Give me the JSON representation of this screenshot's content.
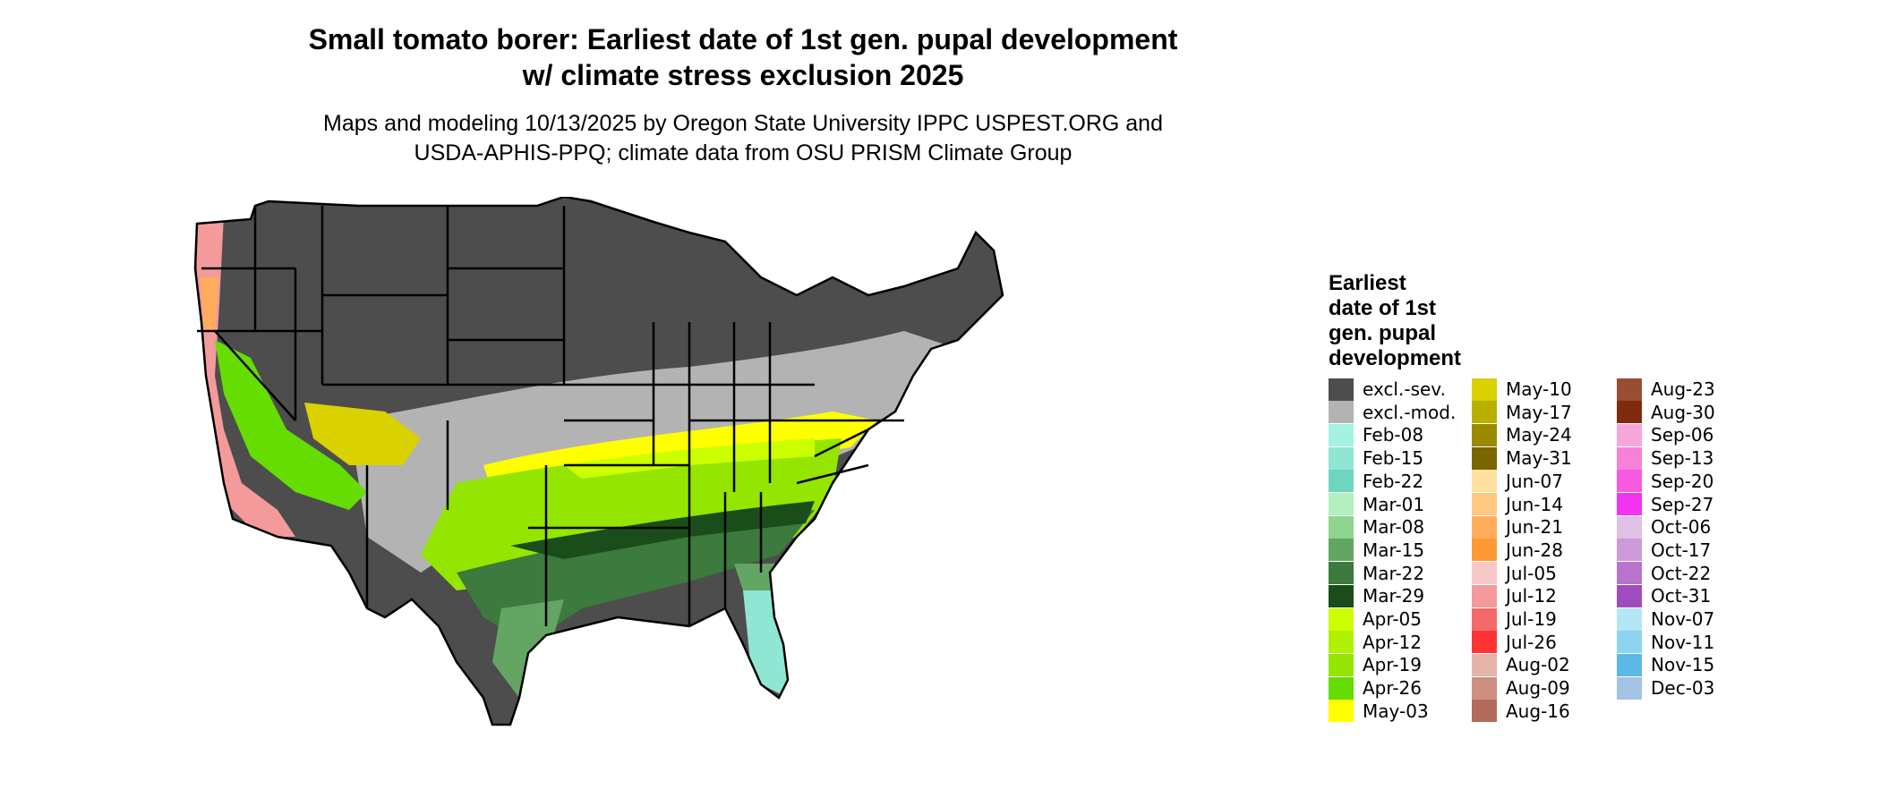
{
  "title_line1": "Small tomato borer: Earliest date of 1st gen. pupal development",
  "title_line2": "w/ climate stress exclusion 2025",
  "subtitle_line1": "Maps and modeling 10/13/2025 by Oregon State University IPPC USPEST.ORG and",
  "subtitle_line2": "USDA-APHIS-PPQ; climate data from OSU PRISM Climate Group",
  "legend": {
    "title_lines": [
      "Earliest",
      "date of 1st",
      "gen. pupal",
      "development"
    ],
    "columns": [
      [
        {
          "label": "excl.-sev.",
          "color": "#4d4d4d"
        },
        {
          "label": "excl.-mod.",
          "color": "#b3b3b3"
        },
        {
          "label": "Feb-08",
          "color": "#a6f2e0"
        },
        {
          "label": "Feb-15",
          "color": "#8ee6d3"
        },
        {
          "label": "Feb-22",
          "color": "#6ed6bf"
        },
        {
          "label": "Mar-01",
          "color": "#b4f0bf"
        },
        {
          "label": "Mar-08",
          "color": "#8fd48f"
        },
        {
          "label": "Mar-15",
          "color": "#63a663"
        },
        {
          "label": "Mar-22",
          "color": "#3d7a3d"
        },
        {
          "label": "Mar-29",
          "color": "#1a4d1a"
        },
        {
          "label": "Apr-05",
          "color": "#ccff00"
        },
        {
          "label": "Apr-12",
          "color": "#b0f000"
        },
        {
          "label": "Apr-19",
          "color": "#94e600"
        },
        {
          "label": "Apr-26",
          "color": "#66dd00"
        },
        {
          "label": "May-03",
          "color": "#ffff00"
        }
      ],
      [
        {
          "label": "May-10",
          "color": "#d9d100"
        },
        {
          "label": "May-17",
          "color": "#b8b000"
        },
        {
          "label": "May-24",
          "color": "#998a00"
        },
        {
          "label": "May-31",
          "color": "#7a6600"
        },
        {
          "label": "Jun-07",
          "color": "#ffe09e"
        },
        {
          "label": "Jun-14",
          "color": "#ffc880"
        },
        {
          "label": "Jun-21",
          "color": "#ffad5c"
        },
        {
          "label": "Jun-28",
          "color": "#ff9933"
        },
        {
          "label": "Jul-05",
          "color": "#f7c8c8"
        },
        {
          "label": "Jul-12",
          "color": "#f49a9a"
        },
        {
          "label": "Jul-19",
          "color": "#f46a6a"
        },
        {
          "label": "Jul-26",
          "color": "#ff3333"
        },
        {
          "label": "Aug-02",
          "color": "#e6b3a8"
        },
        {
          "label": "Aug-09",
          "color": "#cc8f80"
        },
        {
          "label": "Aug-16",
          "color": "#b36b5c"
        }
      ],
      [
        {
          "label": "Aug-23",
          "color": "#994d33"
        },
        {
          "label": "Aug-30",
          "color": "#802b0d"
        },
        {
          "label": "Sep-06",
          "color": "#f7a6d9"
        },
        {
          "label": "Sep-13",
          "color": "#f780d9"
        },
        {
          "label": "Sep-20",
          "color": "#f75ae0"
        },
        {
          "label": "Sep-27",
          "color": "#f233f2"
        },
        {
          "label": "Oct-06",
          "color": "#dfc0e6"
        },
        {
          "label": "Oct-17",
          "color": "#cc99d9"
        },
        {
          "label": "Oct-22",
          "color": "#b873cc"
        },
        {
          "label": "Oct-31",
          "color": "#a04cbf"
        },
        {
          "label": "Nov-07",
          "color": "#b3e6f7"
        },
        {
          "label": "Nov-11",
          "color": "#8cd4f0"
        },
        {
          "label": "Nov-15",
          "color": "#5cb8e6"
        },
        {
          "label": "Dec-03",
          "color": "#a3c2e6"
        }
      ]
    ]
  },
  "map_colors": {
    "excluded_severe": "#4d4d4d",
    "excluded_moderate": "#b3b3b3",
    "state_border": "#000000"
  }
}
